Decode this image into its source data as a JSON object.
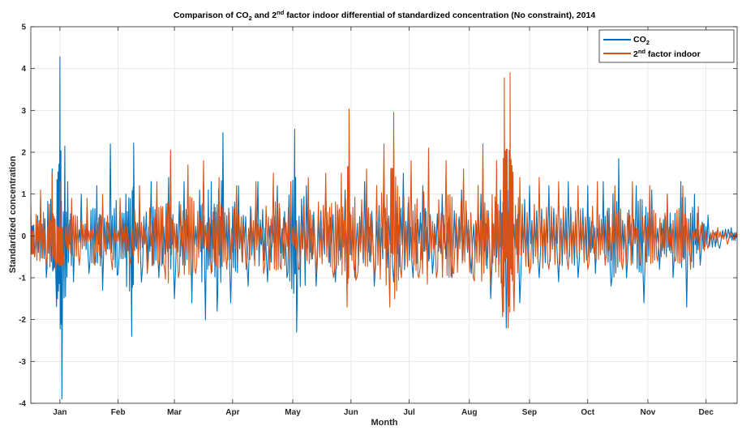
{
  "chart_data": {
    "type": "line",
    "title": {
      "prefix": "Comparison of CO",
      "sub": "2",
      "middle": " and 2",
      "sup": "nd",
      "suffix": " factor indoor differential of standardized concentration (No constraint), 2014"
    },
    "xlabel": "Month",
    "ylabel": "Standardized concentration",
    "x_unit": "day of year 2014",
    "xlim": [
      1,
      365
    ],
    "ylim": [
      -4,
      5
    ],
    "yticks": [
      -4,
      -3,
      -2,
      -1,
      0,
      1,
      2,
      3,
      4,
      5
    ],
    "month_ticks": [
      {
        "label": "Jan",
        "day": 16
      },
      {
        "label": "Feb",
        "day": 46
      },
      {
        "label": "Mar",
        "day": 75
      },
      {
        "label": "Apr",
        "day": 105
      },
      {
        "label": "May",
        "day": 136
      },
      {
        "label": "Jun",
        "day": 166
      },
      {
        "label": "Jul",
        "day": 196
      },
      {
        "label": "Aug",
        "day": 227
      },
      {
        "label": "Sep",
        "day": 258
      },
      {
        "label": "Oct",
        "day": 288
      },
      {
        "label": "Nov",
        "day": 319
      },
      {
        "label": "Dec",
        "day": 349
      }
    ],
    "grid": true,
    "legend_position": "top-right",
    "series": [
      {
        "name": {
          "base": "CO",
          "sub": "2"
        },
        "color": "#0072BD",
        "samples": [
          [
            1,
            0.5
          ],
          [
            3,
            -0.5
          ],
          [
            6,
            0.9
          ],
          [
            9,
            -1.0
          ],
          [
            12,
            1.6
          ],
          [
            14,
            -1.2
          ],
          [
            16,
            4.28
          ],
          [
            17,
            -3.9
          ],
          [
            20,
            1.3
          ],
          [
            23,
            -1.1
          ],
          [
            27,
            1.0
          ],
          [
            31,
            -0.9
          ],
          [
            35,
            1.2
          ],
          [
            38,
            -1.3
          ],
          [
            42,
            2.2
          ],
          [
            46,
            -0.9
          ],
          [
            50,
            1.0
          ],
          [
            53,
            -2.4
          ],
          [
            54,
            2.22
          ],
          [
            58,
            -1.1
          ],
          [
            63,
            1.3
          ],
          [
            67,
            -1.0
          ],
          [
            72,
            1.4
          ],
          [
            75,
            -1.5
          ],
          [
            80,
            1.3
          ],
          [
            84,
            -1.6
          ],
          [
            88,
            1.1
          ],
          [
            91,
            -2.0
          ],
          [
            94,
            1.3
          ],
          [
            97,
            -1.8
          ],
          [
            100,
            2.47
          ],
          [
            104,
            -1.6
          ],
          [
            108,
            1.2
          ],
          [
            113,
            -1.2
          ],
          [
            118,
            1.3
          ],
          [
            123,
            -1.1
          ],
          [
            128,
            1.2
          ],
          [
            133,
            -1.0
          ],
          [
            137,
            2.55
          ],
          [
            138,
            -2.3
          ],
          [
            143,
            1.2
          ],
          [
            148,
            -1.2
          ],
          [
            153,
            1.2
          ],
          [
            158,
            -1.1
          ],
          [
            163,
            1.1
          ],
          [
            168,
            -1.0
          ],
          [
            173,
            1.3
          ],
          [
            178,
            -1.2
          ],
          [
            183,
            1.4
          ],
          [
            188,
            -1.1
          ],
          [
            193,
            1.5
          ],
          [
            198,
            -1.0
          ],
          [
            203,
            1.2
          ],
          [
            208,
            -0.9
          ],
          [
            213,
            1.0
          ],
          [
            218,
            -1.0
          ],
          [
            223,
            1.1
          ],
          [
            228,
            -0.9
          ],
          [
            233,
            1.0
          ],
          [
            238,
            -1.5
          ],
          [
            243,
            1.1
          ],
          [
            246,
            -2.2
          ],
          [
            249,
            1.5
          ],
          [
            253,
            -1.6
          ],
          [
            258,
            1.2
          ],
          [
            263,
            -1.0
          ],
          [
            268,
            1.2
          ],
          [
            273,
            -1.1
          ],
          [
            278,
            1.3
          ],
          [
            283,
            -1.0
          ],
          [
            288,
            1.2
          ],
          [
            292,
            -0.9
          ],
          [
            296,
            1.3
          ],
          [
            300,
            -1.2
          ],
          [
            304,
            1.85
          ],
          [
            308,
            -1.0
          ],
          [
            313,
            1.2
          ],
          [
            317,
            -1.6
          ],
          [
            321,
            1.1
          ],
          [
            325,
            -0.8
          ],
          [
            329,
            1.0
          ],
          [
            332,
            -1.0
          ],
          [
            336,
            1.3
          ],
          [
            339,
            -1.7
          ],
          [
            343,
            1.0
          ],
          [
            346,
            -0.7
          ],
          [
            350,
            0.5
          ],
          [
            356,
            -0.3
          ],
          [
            362,
            0.2
          ],
          [
            365,
            0.0
          ]
        ]
      },
      {
        "name": {
          "base": "2",
          "sup": "nd",
          "tail": " factor indoor"
        },
        "color": "#D95319",
        "samples": [
          [
            1,
            0.8
          ],
          [
            3,
            -0.5
          ],
          [
            6,
            1.1
          ],
          [
            9,
            -0.7
          ],
          [
            12,
            1.5
          ],
          [
            14,
            -0.8
          ],
          [
            16,
            1.3
          ],
          [
            18,
            -0.6
          ],
          [
            22,
            0.9
          ],
          [
            26,
            -0.7
          ],
          [
            30,
            0.9
          ],
          [
            34,
            -0.7
          ],
          [
            38,
            1.0
          ],
          [
            43,
            -0.8
          ],
          [
            47,
            0.9
          ],
          [
            52,
            -0.7
          ],
          [
            57,
            1.2
          ],
          [
            61,
            -0.9
          ],
          [
            66,
            1.3
          ],
          [
            70,
            -0.8
          ],
          [
            73,
            2.05
          ],
          [
            77,
            -1.0
          ],
          [
            82,
            1.7
          ],
          [
            86,
            -0.9
          ],
          [
            90,
            1.8
          ],
          [
            94,
            -0.9
          ],
          [
            98,
            1.4
          ],
          [
            102,
            -0.8
          ],
          [
            107,
            1.2
          ],
          [
            112,
            -0.8
          ],
          [
            117,
            1.3
          ],
          [
            121,
            -0.9
          ],
          [
            126,
            1.5
          ],
          [
            130,
            -0.8
          ],
          [
            135,
            1.3
          ],
          [
            139,
            -0.8
          ],
          [
            144,
            1.4
          ],
          [
            148,
            -0.9
          ],
          [
            153,
            1.5
          ],
          [
            157,
            -1.0
          ],
          [
            161,
            1.5
          ],
          [
            164,
            -1.7
          ],
          [
            165,
            3.03
          ],
          [
            169,
            -1.0
          ],
          [
            174,
            1.6
          ],
          [
            178,
            -1.0
          ],
          [
            183,
            2.2
          ],
          [
            186,
            -1.7
          ],
          [
            188,
            2.95
          ],
          [
            192,
            -1.0
          ],
          [
            197,
            1.8
          ],
          [
            201,
            -1.0
          ],
          [
            206,
            2.1
          ],
          [
            210,
            -1.0
          ],
          [
            215,
            1.8
          ],
          [
            219,
            -0.9
          ],
          [
            224,
            1.6
          ],
          [
            229,
            -1.0
          ],
          [
            234,
            2.2
          ],
          [
            238,
            -1.2
          ],
          [
            241,
            1.8
          ],
          [
            244,
            -1.7
          ],
          [
            245,
            3.78
          ],
          [
            247,
            -2.2
          ],
          [
            248,
            3.9
          ],
          [
            250,
            -1.8
          ],
          [
            253,
            1.4
          ],
          [
            258,
            -0.9
          ],
          [
            263,
            1.4
          ],
          [
            268,
            -0.8
          ],
          [
            273,
            1.3
          ],
          [
            278,
            -0.8
          ],
          [
            283,
            1.2
          ],
          [
            288,
            -0.8
          ],
          [
            293,
            1.3
          ],
          [
            297,
            -0.7
          ],
          [
            302,
            1.2
          ],
          [
            306,
            -0.8
          ],
          [
            311,
            1.3
          ],
          [
            315,
            -0.7
          ],
          [
            320,
            1.2
          ],
          [
            324,
            -0.6
          ],
          [
            329,
            1.0
          ],
          [
            333,
            -0.6
          ],
          [
            337,
            1.2
          ],
          [
            341,
            -0.8
          ],
          [
            345,
            0.7
          ],
          [
            350,
            -0.3
          ],
          [
            355,
            0.2
          ],
          [
            360,
            -0.2
          ],
          [
            365,
            0.1
          ]
        ]
      }
    ]
  }
}
